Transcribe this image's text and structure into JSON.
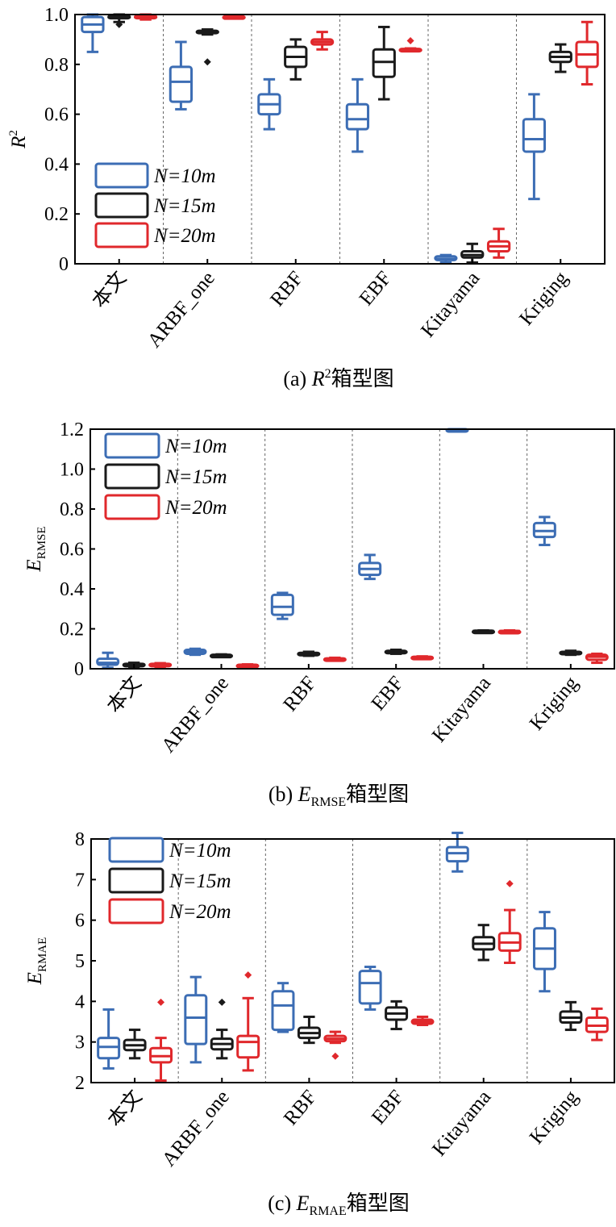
{
  "chart_data": [
    {
      "type": "box",
      "caption_prefix": "(a) ",
      "caption_symbol": "R",
      "caption_sup": "2",
      "caption_sub": "",
      "caption_suffix": "箱型图",
      "ylabel_main": "R",
      "ylabel_sup": "2",
      "ylabel_sub": "",
      "ylim": [
        0,
        1.0
      ],
      "yticks": [
        0,
        0.2,
        0.4,
        0.6,
        0.8,
        1.0
      ],
      "ytick_labels": [
        "0",
        "0.2",
        "0.4",
        "0.6",
        "0.8",
        "1.0"
      ],
      "categories": [
        "本文",
        "ARBF_one",
        "RBF",
        "EBF",
        "Kitayama",
        "Kriging"
      ],
      "legend_position": "bottom-left",
      "series": [
        {
          "name": "N=10m",
          "color": "#3c6db4",
          "boxes": [
            {
              "min": 0.85,
              "q1": 0.93,
              "median": 0.96,
              "q3": 0.99,
              "max": 1.0,
              "outliers": []
            },
            {
              "min": 0.62,
              "q1": 0.65,
              "median": 0.73,
              "q3": 0.79,
              "max": 0.89,
              "outliers": []
            },
            {
              "min": 0.54,
              "q1": 0.6,
              "median": 0.64,
              "q3": 0.68,
              "max": 0.74,
              "outliers": []
            },
            {
              "min": 0.45,
              "q1": 0.54,
              "median": 0.58,
              "q3": 0.64,
              "max": 0.74,
              "outliers": []
            },
            {
              "min": 0.005,
              "q1": 0.015,
              "median": 0.02,
              "q3": 0.03,
              "max": 0.035,
              "outliers": []
            },
            {
              "min": 0.26,
              "q1": 0.45,
              "median": 0.5,
              "q3": 0.58,
              "max": 0.68,
              "outliers": []
            }
          ]
        },
        {
          "name": "N=15m",
          "color": "#1a1a1a",
          "boxes": [
            {
              "min": 0.97,
              "q1": 0.985,
              "median": 0.99,
              "q3": 0.995,
              "max": 1.0,
              "outliers": [
                0.96
              ]
            },
            {
              "min": 0.92,
              "q1": 0.925,
              "median": 0.93,
              "q3": 0.935,
              "max": 0.94,
              "outliers": [
                0.81
              ]
            },
            {
              "min": 0.74,
              "q1": 0.79,
              "median": 0.83,
              "q3": 0.87,
              "max": 0.9,
              "outliers": []
            },
            {
              "min": 0.66,
              "q1": 0.75,
              "median": 0.81,
              "q3": 0.86,
              "max": 0.95,
              "outliers": []
            },
            {
              "min": 0.005,
              "q1": 0.025,
              "median": 0.035,
              "q3": 0.05,
              "max": 0.08,
              "outliers": []
            },
            {
              "min": 0.77,
              "q1": 0.81,
              "median": 0.83,
              "q3": 0.85,
              "max": 0.88,
              "outliers": []
            }
          ]
        },
        {
          "name": "N=20m",
          "color": "#e0282c",
          "boxes": [
            {
              "min": 0.98,
              "q1": 0.985,
              "median": 0.99,
              "q3": 0.995,
              "max": 1.0,
              "outliers": []
            },
            {
              "min": 0.985,
              "q1": 0.988,
              "median": 0.99,
              "q3": 0.993,
              "max": 0.996,
              "outliers": []
            },
            {
              "min": 0.86,
              "q1": 0.88,
              "median": 0.89,
              "q3": 0.9,
              "max": 0.93,
              "outliers": []
            },
            {
              "min": 0.858,
              "q1": 0.859,
              "median": 0.86,
              "q3": 0.862,
              "max": 0.864,
              "outliers": [
                0.895
              ]
            },
            {
              "min": 0.025,
              "q1": 0.05,
              "median": 0.07,
              "q3": 0.09,
              "max": 0.14,
              "outliers": []
            },
            {
              "min": 0.72,
              "q1": 0.79,
              "median": 0.84,
              "q3": 0.89,
              "max": 0.97,
              "outliers": []
            }
          ]
        }
      ]
    },
    {
      "type": "box",
      "caption_prefix": "(b) ",
      "caption_symbol": "E",
      "caption_sup": "",
      "caption_sub": "RMSE",
      "caption_suffix": "箱型图",
      "ylabel_main": "E",
      "ylabel_sup": "",
      "ylabel_sub": "RMSE",
      "ylim": [
        0,
        1.2
      ],
      "yticks": [
        0,
        0.2,
        0.4,
        0.6,
        0.8,
        1.0,
        1.2
      ],
      "ytick_labels": [
        "0",
        "0.2",
        "0.4",
        "0.6",
        "0.8",
        "1.0",
        "1.2"
      ],
      "categories": [
        "本文",
        "ARBF_one",
        "RBF",
        "EBF",
        "Kitayama",
        "Kriging"
      ],
      "legend_position": "top-left",
      "series": [
        {
          "name": "N=10m",
          "color": "#3c6db4",
          "boxes": [
            {
              "min": 0.005,
              "q1": 0.02,
              "median": 0.03,
              "q3": 0.05,
              "max": 0.08,
              "outliers": []
            },
            {
              "min": 0.07,
              "q1": 0.075,
              "median": 0.085,
              "q3": 0.095,
              "max": 0.1,
              "outliers": []
            },
            {
              "min": 0.25,
              "q1": 0.27,
              "median": 0.31,
              "q3": 0.37,
              "max": 0.38,
              "outliers": []
            },
            {
              "min": 0.45,
              "q1": 0.47,
              "median": 0.5,
              "q3": 0.53,
              "max": 0.57,
              "outliers": []
            },
            {
              "min": 1.19,
              "q1": 1.19,
              "median": 1.195,
              "q3": 1.2,
              "max": 1.2,
              "outliers": []
            },
            {
              "min": 0.62,
              "q1": 0.66,
              "median": 0.69,
              "q3": 0.73,
              "max": 0.76,
              "outliers": []
            }
          ]
        },
        {
          "name": "N=15m",
          "color": "#1a1a1a",
          "boxes": [
            {
              "min": 0.005,
              "q1": 0.015,
              "median": 0.02,
              "q3": 0.025,
              "max": 0.03,
              "outliers": []
            },
            {
              "min": 0.06,
              "q1": 0.062,
              "median": 0.065,
              "q3": 0.07,
              "max": 0.072,
              "outliers": []
            },
            {
              "min": 0.065,
              "q1": 0.07,
              "median": 0.075,
              "q3": 0.08,
              "max": 0.085,
              "outliers": []
            },
            {
              "min": 0.075,
              "q1": 0.08,
              "median": 0.085,
              "q3": 0.09,
              "max": 0.095,
              "outliers": []
            },
            {
              "min": 0.188,
              "q1": 0.189,
              "median": 0.19,
              "q3": 0.191,
              "max": 0.192,
              "outliers": []
            },
            {
              "min": 0.07,
              "q1": 0.075,
              "median": 0.08,
              "q3": 0.085,
              "max": 0.09,
              "outliers": []
            }
          ]
        },
        {
          "name": "N=20m",
          "color": "#e0282c",
          "boxes": [
            {
              "min": 0.01,
              "q1": 0.015,
              "median": 0.02,
              "q3": 0.025,
              "max": 0.028,
              "outliers": []
            },
            {
              "min": 0.012,
              "q1": 0.015,
              "median": 0.018,
              "q3": 0.02,
              "max": 0.022,
              "outliers": []
            },
            {
              "min": 0.042,
              "q1": 0.045,
              "median": 0.05,
              "q3": 0.052,
              "max": 0.055,
              "outliers": []
            },
            {
              "min": 0.053,
              "q1": 0.055,
              "median": 0.058,
              "q3": 0.06,
              "max": 0.062,
              "outliers": []
            },
            {
              "min": 0.186,
              "q1": 0.188,
              "median": 0.189,
              "q3": 0.19,
              "max": 0.192,
              "outliers": []
            },
            {
              "min": 0.03,
              "q1": 0.045,
              "median": 0.06,
              "q3": 0.07,
              "max": 0.075,
              "outliers": []
            }
          ]
        }
      ]
    },
    {
      "type": "box",
      "caption_prefix": "(c) ",
      "caption_symbol": "E",
      "caption_sup": "",
      "caption_sub": "RMAE",
      "caption_suffix": "箱型图",
      "ylabel_main": "E",
      "ylabel_sup": "",
      "ylabel_sub": "RMAE",
      "ylim": [
        2,
        8
      ],
      "yticks": [
        2,
        3,
        4,
        5,
        6,
        7,
        8
      ],
      "ytick_labels": [
        "2",
        "3",
        "4",
        "5",
        "6",
        "7",
        "8"
      ],
      "categories": [
        "本文",
        "ARBF_one",
        "RBF",
        "EBF",
        "Kitayama",
        "Kriging"
      ],
      "legend_position": "top-left",
      "series": [
        {
          "name": "N=10m",
          "color": "#3c6db4",
          "boxes": [
            {
              "min": 2.35,
              "q1": 2.6,
              "median": 2.88,
              "q3": 3.1,
              "max": 3.8,
              "outliers": []
            },
            {
              "min": 2.5,
              "q1": 2.95,
              "median": 3.6,
              "q3": 4.15,
              "max": 4.6,
              "outliers": []
            },
            {
              "min": 3.25,
              "q1": 3.3,
              "median": 3.9,
              "q3": 4.25,
              "max": 4.45,
              "outliers": []
            },
            {
              "min": 3.8,
              "q1": 3.95,
              "median": 4.45,
              "q3": 4.75,
              "max": 4.85,
              "outliers": []
            },
            {
              "min": 7.2,
              "q1": 7.45,
              "median": 7.65,
              "q3": 7.8,
              "max": 8.15,
              "outliers": []
            },
            {
              "min": 4.25,
              "q1": 4.8,
              "median": 5.3,
              "q3": 5.8,
              "max": 6.2,
              "outliers": []
            }
          ]
        },
        {
          "name": "N=15m",
          "color": "#1a1a1a",
          "boxes": [
            {
              "min": 2.6,
              "q1": 2.8,
              "median": 2.92,
              "q3": 3.05,
              "max": 3.3,
              "outliers": []
            },
            {
              "min": 2.6,
              "q1": 2.82,
              "median": 2.95,
              "q3": 3.08,
              "max": 3.3,
              "outliers": [
                3.98
              ]
            },
            {
              "min": 2.98,
              "q1": 3.1,
              "median": 3.22,
              "q3": 3.35,
              "max": 3.62,
              "outliers": []
            },
            {
              "min": 3.32,
              "q1": 3.55,
              "median": 3.7,
              "q3": 3.85,
              "max": 4.0,
              "outliers": []
            },
            {
              "min": 5.02,
              "q1": 5.28,
              "median": 5.42,
              "q3": 5.58,
              "max": 5.88,
              "outliers": []
            },
            {
              "min": 3.3,
              "q1": 3.48,
              "median": 3.6,
              "q3": 3.75,
              "max": 3.98,
              "outliers": []
            }
          ]
        },
        {
          "name": "N=20m",
          "color": "#e0282c",
          "boxes": [
            {
              "min": 2.05,
              "q1": 2.5,
              "median": 2.65,
              "q3": 2.85,
              "max": 3.1,
              "outliers": [
                3.98
              ]
            },
            {
              "min": 2.3,
              "q1": 2.62,
              "median": 3.0,
              "q3": 3.15,
              "max": 4.08,
              "outliers": [
                4.65
              ]
            },
            {
              "min": 2.98,
              "q1": 3.02,
              "median": 3.08,
              "q3": 3.15,
              "max": 3.25,
              "outliers": [
                2.65
              ]
            },
            {
              "min": 3.42,
              "q1": 3.45,
              "median": 3.5,
              "q3": 3.55,
              "max": 3.62,
              "outliers": []
            },
            {
              "min": 4.95,
              "q1": 5.25,
              "median": 5.45,
              "q3": 5.68,
              "max": 6.25,
              "outliers": [
                6.9
              ]
            },
            {
              "min": 3.05,
              "q1": 3.25,
              "median": 3.4,
              "q3": 3.6,
              "max": 3.82,
              "outliers": []
            }
          ]
        }
      ]
    }
  ]
}
